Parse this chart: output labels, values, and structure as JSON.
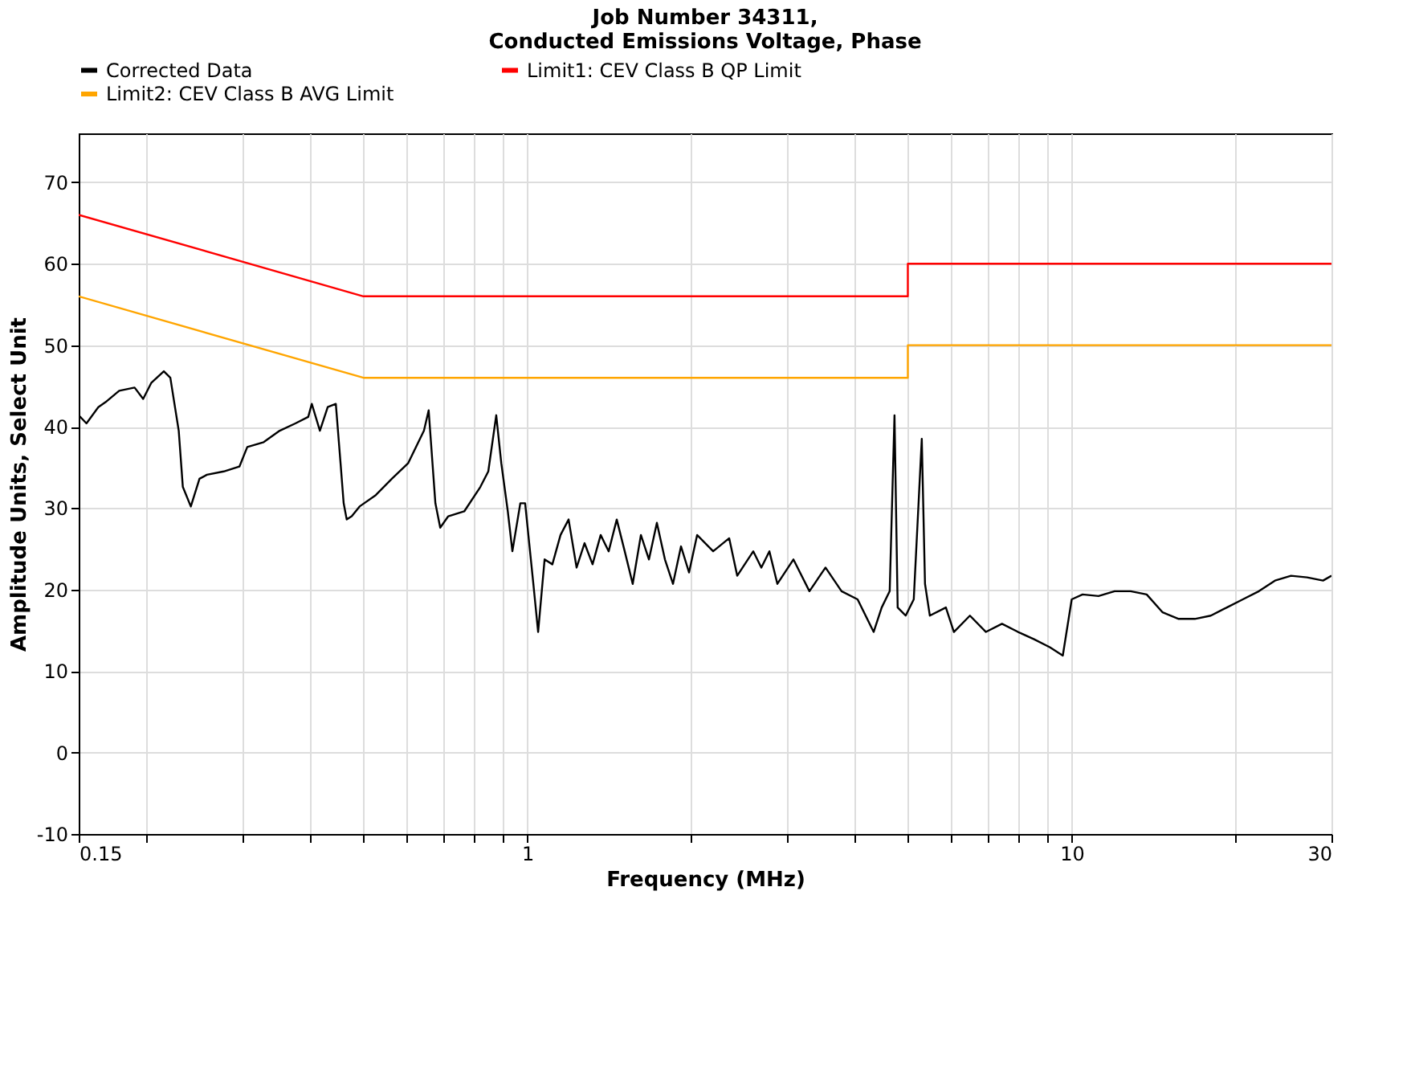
{
  "chart_data": {
    "type": "line",
    "title": [
      "Job Number 34311,",
      "Conducted Emissions Voltage, Phase"
    ],
    "xlabel": "Frequency (MHz)",
    "ylabel": "Amplitude Units, Select Unit",
    "log": "x",
    "grid": true,
    "legend": "top",
    "marker": "none",
    "line_style": "solid",
    "xlim": [
      0.15,
      30
    ],
    "ylim": [
      -10,
      76
    ],
    "xticks": [
      0.15,
      {
        "value": 0.2,
        "label": null
      },
      {
        "value": 0.3,
        "label": null
      },
      {
        "value": 0.4,
        "label": null
      },
      {
        "value": 0.5,
        "label": null
      },
      {
        "value": 0.6,
        "label": null
      },
      {
        "value": 0.7,
        "label": null
      },
      {
        "value": 0.8,
        "label": null
      },
      {
        "value": 0.9,
        "label": null
      },
      1,
      {
        "value": 2,
        "label": null
      },
      {
        "value": 3,
        "label": null
      },
      {
        "value": 4,
        "label": null
      },
      {
        "value": 5,
        "label": null
      },
      {
        "value": 6,
        "label": null
      },
      {
        "value": 7,
        "label": null
      },
      {
        "value": 8,
        "label": null
      },
      {
        "value": 9,
        "label": null
      },
      10,
      {
        "value": 20,
        "label": null
      },
      30
    ],
    "yticks": [
      -10,
      0,
      10,
      20,
      30,
      40,
      50,
      60,
      70
    ],
    "series": [
      {
        "name": "Corrected Data",
        "color": "#000000",
        "x": [
          0.15,
          0.155,
          0.163,
          0.168,
          0.178,
          0.19,
          0.197,
          0.204,
          0.215,
          0.221,
          0.229,
          0.233,
          0.241,
          0.25,
          0.258,
          0.277,
          0.296,
          0.306,
          0.328,
          0.351,
          0.375,
          0.396,
          0.402,
          0.416,
          0.43,
          0.445,
          0.454,
          0.46,
          0.466,
          0.476,
          0.492,
          0.527,
          0.564,
          0.604,
          0.646,
          0.659,
          0.678,
          0.692,
          0.716,
          0.766,
          0.82,
          0.848,
          0.877,
          0.896,
          0.921,
          0.939,
          0.971,
          0.991,
          1.026,
          1.047,
          1.076,
          1.112,
          1.151,
          1.191,
          1.232,
          1.274,
          1.318,
          1.364,
          1.411,
          1.46,
          1.51,
          1.562,
          1.617,
          1.673,
          1.73,
          1.79,
          1.852,
          1.916,
          1.982,
          2.051,
          2.195,
          2.349,
          2.43,
          2.601,
          2.691,
          2.784,
          2.88,
          3.082,
          3.298,
          3.53,
          3.778,
          4.043,
          4.327,
          4.477,
          4.631,
          4.726,
          4.79,
          4.955,
          5.127,
          5.304,
          5.377,
          5.488,
          5.873,
          6.076,
          6.502,
          6.958,
          7.446,
          7.968,
          8.527,
          9.125,
          9.63,
          10.0,
          10.47,
          11.2,
          11.99,
          12.83,
          13.73,
          14.69,
          15.72,
          16.83,
          18.01,
          19.27,
          20.62,
          22.07,
          23.62,
          25.28,
          27.05,
          28.95,
          30.0
        ],
        "values": [
          41.4,
          40.4,
          42.4,
          43.0,
          44.4,
          44.8,
          43.4,
          45.4,
          46.8,
          46.0,
          39.5,
          32.6,
          30.2,
          33.6,
          34.1,
          34.5,
          35.1,
          37.5,
          38.1,
          39.5,
          40.4,
          41.2,
          42.8,
          39.5,
          42.4,
          42.8,
          35.5,
          30.6,
          28.6,
          29.0,
          30.2,
          31.6,
          33.6,
          35.5,
          39.5,
          42.0,
          30.6,
          27.6,
          29.0,
          29.6,
          32.6,
          34.5,
          41.4,
          35.5,
          29.6,
          24.7,
          30.6,
          30.6,
          20.7,
          14.8,
          23.7,
          23.1,
          26.7,
          28.6,
          22.7,
          25.7,
          23.1,
          26.7,
          24.7,
          28.6,
          24.7,
          20.7,
          26.7,
          23.7,
          28.2,
          23.7,
          20.7,
          25.3,
          22.1,
          26.7,
          24.7,
          26.3,
          21.7,
          24.7,
          22.7,
          24.7,
          20.7,
          23.7,
          19.8,
          22.7,
          19.8,
          18.8,
          14.8,
          17.8,
          19.8,
          41.4,
          17.8,
          16.8,
          18.8,
          38.5,
          20.7,
          16.8,
          17.8,
          14.8,
          16.8,
          14.8,
          15.8,
          14.8,
          13.9,
          12.9,
          11.9,
          18.8,
          19.4,
          19.2,
          19.8,
          19.8,
          19.4,
          17.2,
          16.4,
          16.4,
          16.8,
          17.8,
          18.8,
          19.8,
          21.1,
          21.7,
          21.5,
          21.1,
          21.7
        ]
      },
      {
        "name": "Limit1: CEV Class B QP Limit",
        "color": "#ff0000",
        "x": [
          0.15,
          0.5,
          5,
          5,
          30
        ],
        "values": [
          66,
          56,
          56,
          60,
          60
        ]
      },
      {
        "name": "Limit2: CEV Class B AVG Limit",
        "color": "#ffa500",
        "x": [
          0.15,
          0.5,
          5,
          5,
          30
        ],
        "values": [
          56,
          46,
          46,
          50,
          50
        ]
      }
    ]
  }
}
